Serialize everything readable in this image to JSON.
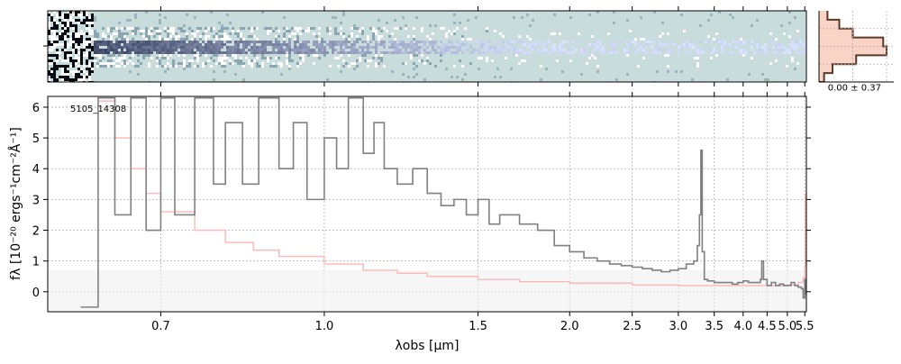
{
  "chart_data": [
    {
      "type": "heatmap",
      "panel": "2d-spectrum",
      "colormap": [
        "#c8dcdc",
        "#ffffff",
        "#1a1a2e"
      ],
      "background_color": "#c8dcdc",
      "x_range": [
        0.5652,
        5.55
      ]
    },
    {
      "type": "line",
      "panel": "1d-spectrum",
      "label": "5105_14308",
      "xlabel": "λobs [μm]",
      "ylabel": "fλ [10⁻²⁰ ergs⁻¹cm⁻²Å⁻¹]",
      "xscale": "1/sqrt(λ)",
      "xlim": [
        0.5652,
        5.55
      ],
      "ylim": [
        -0.65,
        6.35
      ],
      "xticks": [
        0.7,
        1.0,
        1.5,
        2.0,
        2.5,
        3.0,
        3.5,
        4.0,
        4.5,
        5.0,
        5.5
      ],
      "xtick_labels": [
        "0.7",
        "1.0",
        "1.5",
        "2.0",
        "2.5",
        "3.0",
        "3.5",
        "4.0",
        "4.5",
        "5.0",
        "5.5"
      ],
      "yticks": [
        0,
        1,
        2,
        3,
        4,
        5,
        6
      ],
      "ytick_labels": [
        "0",
        "1",
        "2",
        "3",
        "4",
        "5",
        "6"
      ],
      "grid": true,
      "series": [
        {
          "role": "flux",
          "color": "#808080",
          "x": [
            0.6,
            0.62,
            0.64,
            0.66,
            0.68,
            0.7,
            0.72,
            0.75,
            0.78,
            0.8,
            0.83,
            0.86,
            0.9,
            0.93,
            0.96,
            1.0,
            1.03,
            1.06,
            1.1,
            1.13,
            1.16,
            1.2,
            1.25,
            1.3,
            1.35,
            1.4,
            1.45,
            1.5,
            1.55,
            1.6,
            1.7,
            1.8,
            1.9,
            2.0,
            2.1,
            2.2,
            2.3,
            2.4,
            2.5,
            2.6,
            2.7,
            2.8,
            2.9,
            3.0,
            3.1,
            3.2,
            3.25,
            3.28,
            3.3,
            3.32,
            3.35,
            3.4,
            3.5,
            3.6,
            3.7,
            3.8,
            3.9,
            4.0,
            4.1,
            4.2,
            4.3,
            4.35,
            4.38,
            4.42,
            4.5,
            4.6,
            4.7,
            4.8,
            4.9,
            5.0,
            5.1,
            5.2,
            5.3,
            5.4,
            5.45,
            5.5,
            5.52
          ],
          "y": [
            -0.5,
            6.3,
            2.5,
            6.3,
            2.0,
            6.3,
            2.5,
            6.3,
            3.5,
            5.5,
            3.5,
            6.3,
            4.0,
            5.5,
            3.0,
            5.0,
            4.0,
            6.3,
            4.5,
            5.5,
            4.0,
            3.5,
            4.0,
            3.2,
            2.8,
            3.0,
            2.5,
            3.0,
            2.2,
            2.5,
            2.2,
            2.0,
            1.5,
            1.3,
            1.1,
            1.0,
            0.9,
            0.85,
            0.8,
            0.75,
            0.7,
            0.65,
            0.7,
            0.75,
            0.9,
            1.0,
            1.5,
            2.5,
            4.6,
            1.3,
            0.4,
            0.35,
            0.3,
            0.3,
            0.3,
            0.25,
            0.3,
            0.35,
            0.3,
            0.3,
            0.3,
            0.4,
            1.0,
            0.4,
            0.2,
            0.3,
            0.2,
            0.25,
            0.2,
            0.2,
            0.3,
            0.2,
            0.15,
            0.1,
            -0.2,
            0.4,
            -0.1
          ]
        },
        {
          "role": "error",
          "color": "#ffb6b6",
          "x": [
            0.62,
            0.64,
            0.66,
            0.68,
            0.7,
            0.75,
            0.8,
            0.85,
            0.9,
            1.0,
            1.1,
            1.2,
            1.3,
            1.5,
            1.7,
            2.0,
            2.5,
            3.0,
            3.5,
            4.0,
            4.5,
            5.0,
            5.3,
            5.45,
            5.5,
            5.52
          ],
          "y": [
            6.2,
            5.0,
            4.0,
            3.2,
            2.6,
            2.0,
            1.6,
            1.35,
            1.15,
            0.9,
            0.7,
            0.6,
            0.5,
            0.4,
            0.33,
            0.28,
            0.22,
            0.2,
            0.2,
            0.2,
            0.2,
            0.22,
            0.3,
            0.45,
            0.8,
            3.2
          ]
        }
      ]
    },
    {
      "type": "histogram",
      "panel": "residual-histogram",
      "annotation": "0.00 ± 0.37",
      "bins": [
        -2.0,
        -1.5,
        -1.0,
        -0.5,
        0.0,
        0.5,
        1.0,
        1.5,
        2.0
      ],
      "counts": [
        3,
        8,
        22,
        40,
        38,
        20,
        12,
        5
      ],
      "line_color": "#5a3a2a",
      "fill_color": "#f8c8b8"
    }
  ]
}
